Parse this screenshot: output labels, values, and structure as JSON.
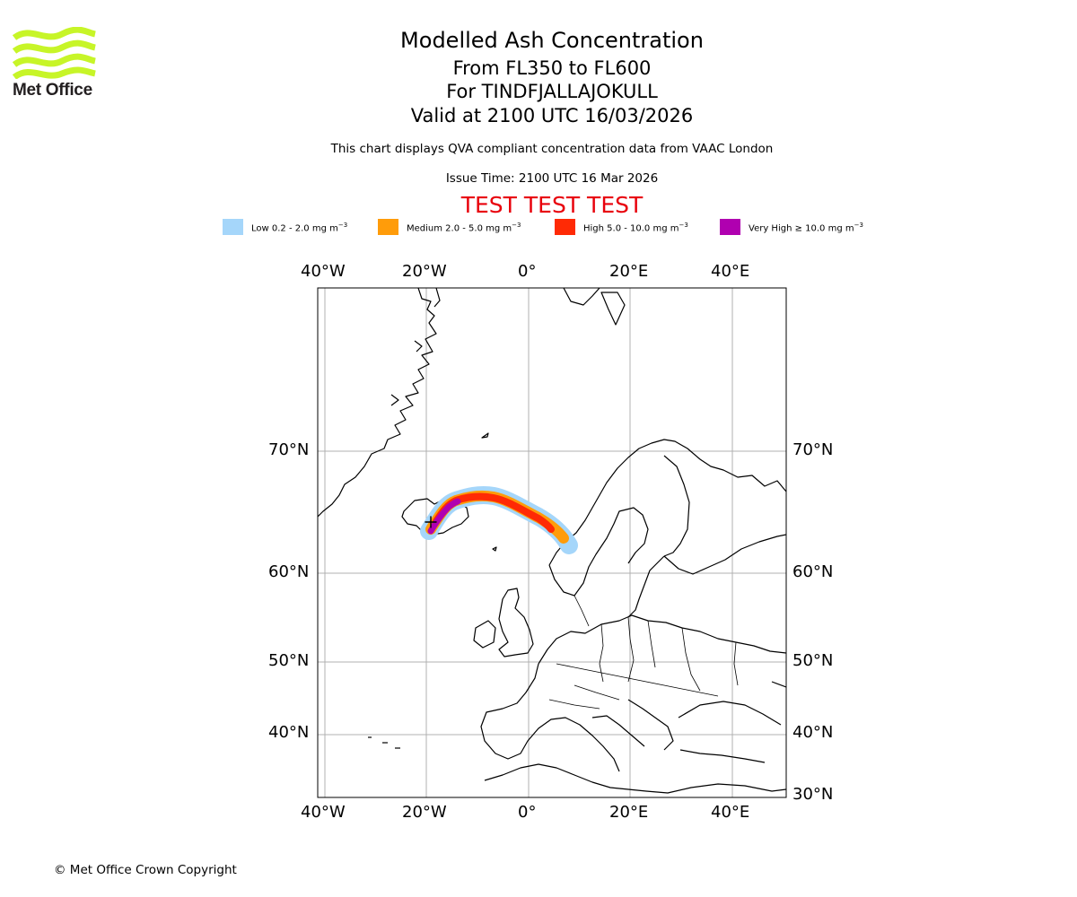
{
  "header": {
    "title": "Modelled Ash Concentration",
    "levels": "From FL350 to FL600",
    "volcano": "For TINDFJALLAJOKULL",
    "valid": "Valid at 2100 UTC 16/03/2026",
    "description": "This chart displays QVA compliant concentration data from VAAC London",
    "issue_time": "Issue Time: 2100 UTC 16 Mar 2026",
    "test_banner": "TEST TEST TEST"
  },
  "logo": {
    "text": "Met Office",
    "color": "#c7f528"
  },
  "legend": [
    {
      "label": "Low 0.2 - 2.0 mg m",
      "unit_exp": "−3",
      "color": "#a5d6fa"
    },
    {
      "label": "Medium 2.0 - 5.0 mg m",
      "unit_exp": "−3",
      "color": "#ff9c0a"
    },
    {
      "label": "High 5.0 - 10.0 mg m",
      "unit_exp": "−3",
      "color": "#ff2a05"
    },
    {
      "label": "Very High ≥ 10.0 mg m",
      "unit_exp": "−3",
      "color": "#b000b0"
    }
  ],
  "axes": {
    "lon_top": [
      "40°W",
      "20°W",
      "0°",
      "20°E",
      "40°E"
    ],
    "lon_bottom": [
      "40°W",
      "20°W",
      "0°",
      "20°E",
      "40°E"
    ],
    "lat_left": [
      "70°N",
      "60°N",
      "50°N",
      "40°N"
    ],
    "lat_right": [
      "70°N",
      "60°N",
      "50°N",
      "40°N",
      "30°N"
    ]
  },
  "footer": {
    "copyright": "© Met Office Crown Copyright"
  }
}
